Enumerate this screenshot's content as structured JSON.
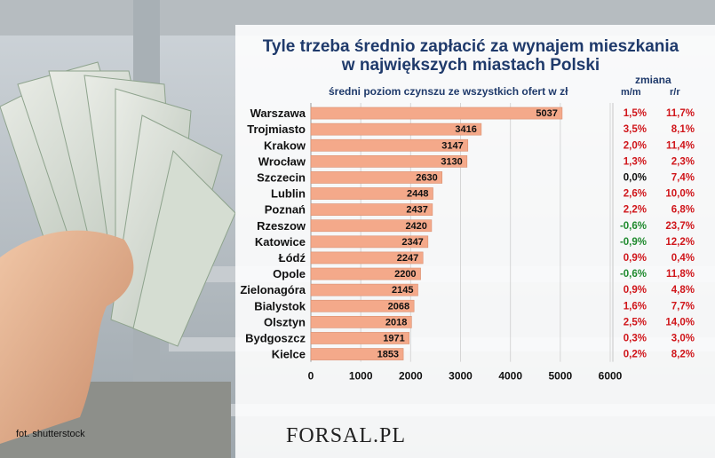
{
  "title_line1": "Tyle trzeba średnio zapłacić za wynajem mieszkania",
  "title_line2": "w największych miastach Polski",
  "subtitle": "średni poziom czynszu ze wszystkich ofert w zł",
  "change_header": "zmiana",
  "col_mm": "m/m",
  "col_rr": "r/r",
  "photo_credit": "fot. shutterstock",
  "logo_text": "FORSAL.PL",
  "colors": {
    "bar": "#f4a98a",
    "positive": "#d0161b",
    "negative": "#1f8a2e",
    "text": "#111111",
    "title": "#1f3a6b"
  },
  "chart_data": {
    "type": "bar",
    "orientation": "horizontal",
    "categories": [
      "Warszawa",
      "Trojmiasto",
      "Krakow",
      "Wrocław",
      "Szczecin",
      "Lublin",
      "Poznań",
      "Rzeszow",
      "Katowice",
      "Łódź",
      "Opole",
      "Zielonagóra",
      "Bialystok",
      "Olsztyn",
      "Bydgoszcz",
      "Kielce"
    ],
    "values": [
      5037,
      3416,
      3147,
      3130,
      2630,
      2448,
      2437,
      2420,
      2347,
      2247,
      2200,
      2145,
      2068,
      2018,
      1971,
      1853
    ],
    "xlim": [
      0,
      6000
    ],
    "xticks": [
      "0",
      "1000",
      "2000",
      "3000",
      "4000",
      "5000",
      "6000"
    ],
    "change_mm": [
      "1,5%",
      "3,5%",
      "2,0%",
      "1,3%",
      "0,0%",
      "2,6%",
      "2,2%",
      "-0,6%",
      "-0,9%",
      "0,9%",
      "-0,6%",
      "0,9%",
      "1,6%",
      "2,5%",
      "0,3%",
      "0,2%"
    ],
    "change_rr": [
      "11,7%",
      "8,1%",
      "11,4%",
      "2,3%",
      "7,4%",
      "10,0%",
      "6,8%",
      "23,7%",
      "12,2%",
      "0,4%",
      "11,8%",
      "4,8%",
      "7,7%",
      "14,0%",
      "3,0%",
      "8,2%"
    ],
    "grid": true
  }
}
